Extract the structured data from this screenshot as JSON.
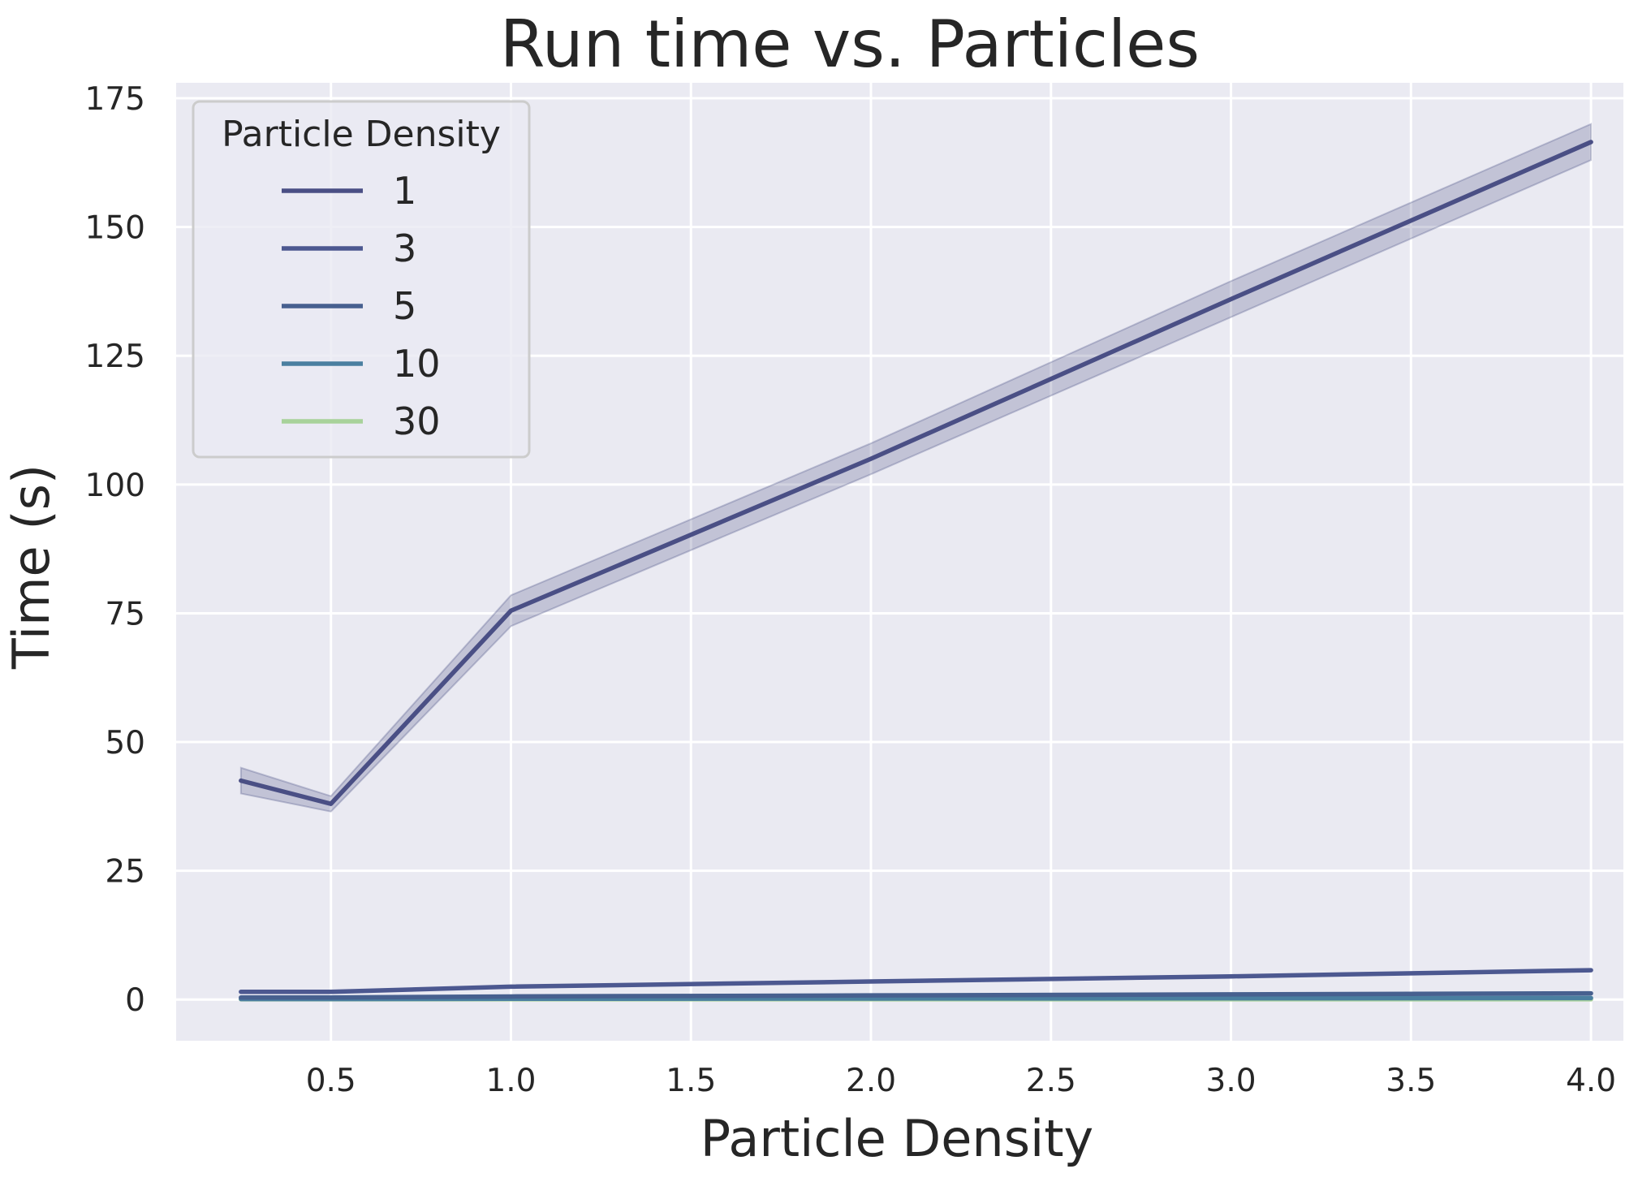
{
  "chart_data": {
    "type": "line",
    "title": "Run time vs. Particles",
    "xlabel": "Particle Density",
    "ylabel": "Time (s)",
    "xlim": [
      0.07,
      4.09
    ],
    "ylim": [
      -8,
      178
    ],
    "xticks": [
      0.5,
      1.0,
      1.5,
      2.0,
      2.5,
      3.0,
      3.5,
      4.0
    ],
    "xtick_labels": [
      "0.5",
      "1.0",
      "1.5",
      "2.0",
      "2.5",
      "3.0",
      "3.5",
      "4.0"
    ],
    "yticks": [
      0,
      25,
      50,
      75,
      100,
      125,
      150,
      175
    ],
    "ytick_labels": [
      "0",
      "25",
      "50",
      "75",
      "100",
      "125",
      "150",
      "175"
    ],
    "grid": true,
    "background": "#eaeaf2",
    "legend": {
      "title": "Particle Density",
      "placement": "top-left"
    },
    "x": [
      0.25,
      0.5,
      1.0,
      2.0,
      3.0,
      4.0
    ],
    "series": [
      {
        "name": "1",
        "color": "#4a4f85",
        "values": [
          42.5,
          38.0,
          75.5,
          105.0,
          136.0,
          166.5
        ],
        "ci_low": [
          40.0,
          36.5,
          72.5,
          102.0,
          132.5,
          163.0
        ],
        "ci_high": [
          45.0,
          39.5,
          78.5,
          108.0,
          139.5,
          170.0
        ]
      },
      {
        "name": "3",
        "color": "#4c5890",
        "values": [
          1.5,
          1.5,
          2.5,
          3.5,
          4.5,
          5.7
        ]
      },
      {
        "name": "5",
        "color": "#47608f",
        "values": [
          0.4,
          0.4,
          0.6,
          0.8,
          1.0,
          1.2
        ]
      },
      {
        "name": "10",
        "color": "#4a7fa0",
        "values": [
          0.1,
          0.1,
          0.15,
          0.2,
          0.25,
          0.3
        ]
      },
      {
        "name": "30",
        "color": "#a8d29a",
        "values": [
          0.05,
          0.05,
          0.05,
          0.05,
          0.05,
          0.05
        ]
      }
    ]
  }
}
